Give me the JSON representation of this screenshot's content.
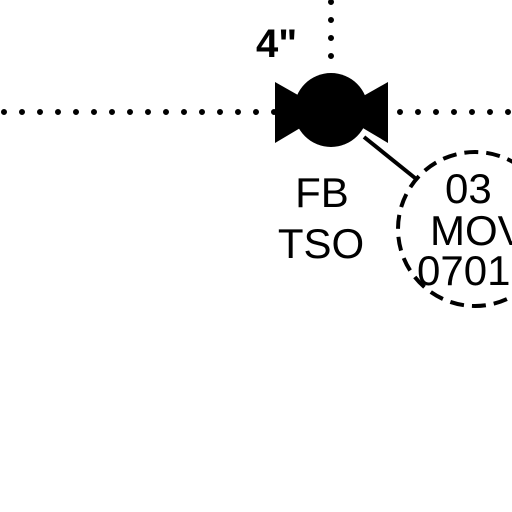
{
  "pipe_size": "4\"",
  "valve": {
    "line1": "FB",
    "line2": "TSO"
  },
  "tag": {
    "line1": "03",
    "line2": "MOV",
    "line3": "0701"
  },
  "colors": {
    "ink": "#000000",
    "paper": "#ffffff"
  }
}
